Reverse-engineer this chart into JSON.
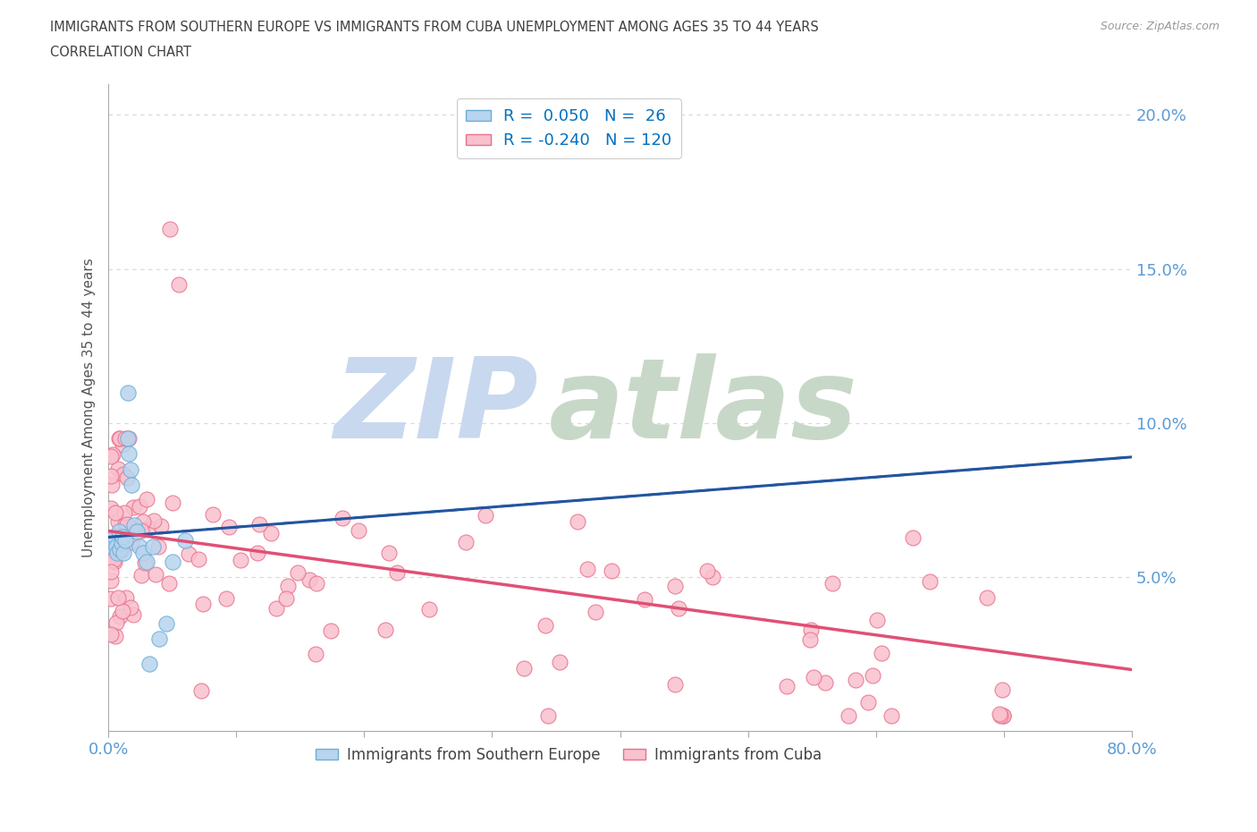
{
  "title_line1": "IMMIGRANTS FROM SOUTHERN EUROPE VS IMMIGRANTS FROM CUBA UNEMPLOYMENT AMONG AGES 35 TO 44 YEARS",
  "title_line2": "CORRELATION CHART",
  "source_text": "Source: ZipAtlas.com",
  "ylabel": "Unemployment Among Ages 35 to 44 years",
  "xlim": [
    0.0,
    0.8
  ],
  "ylim": [
    0.0,
    0.21
  ],
  "ytick_vals": [
    0.05,
    0.1,
    0.15,
    0.2
  ],
  "ytick_labels": [
    "5.0%",
    "10.0%",
    "15.0%",
    "20.0%"
  ],
  "xtick_vals": [
    0.0,
    0.1,
    0.2,
    0.3,
    0.4,
    0.5,
    0.6,
    0.7,
    0.8
  ],
  "series1_label": "Immigrants from Southern Europe",
  "series1_color": "#b8d4ee",
  "series1_edge_color": "#6aaed6",
  "series1_R": 0.05,
  "series1_N": 26,
  "series1_trend_color": "#2255a0",
  "series2_label": "Immigrants from Cuba",
  "series2_color": "#f9c0ce",
  "series2_edge_color": "#e8708a",
  "series2_R": -0.24,
  "series2_N": 120,
  "series2_trend_color": "#e05075",
  "legend_R_color": "#0070c0",
  "watermark_zip_color": "#c8d8ee",
  "watermark_atlas_color": "#c8d8c8",
  "background_color": "#ffffff",
  "grid_color": "#d8d8d8",
  "title_color": "#404040",
  "axis_tick_color": "#5b9bd5",
  "ylabel_color": "#555555"
}
